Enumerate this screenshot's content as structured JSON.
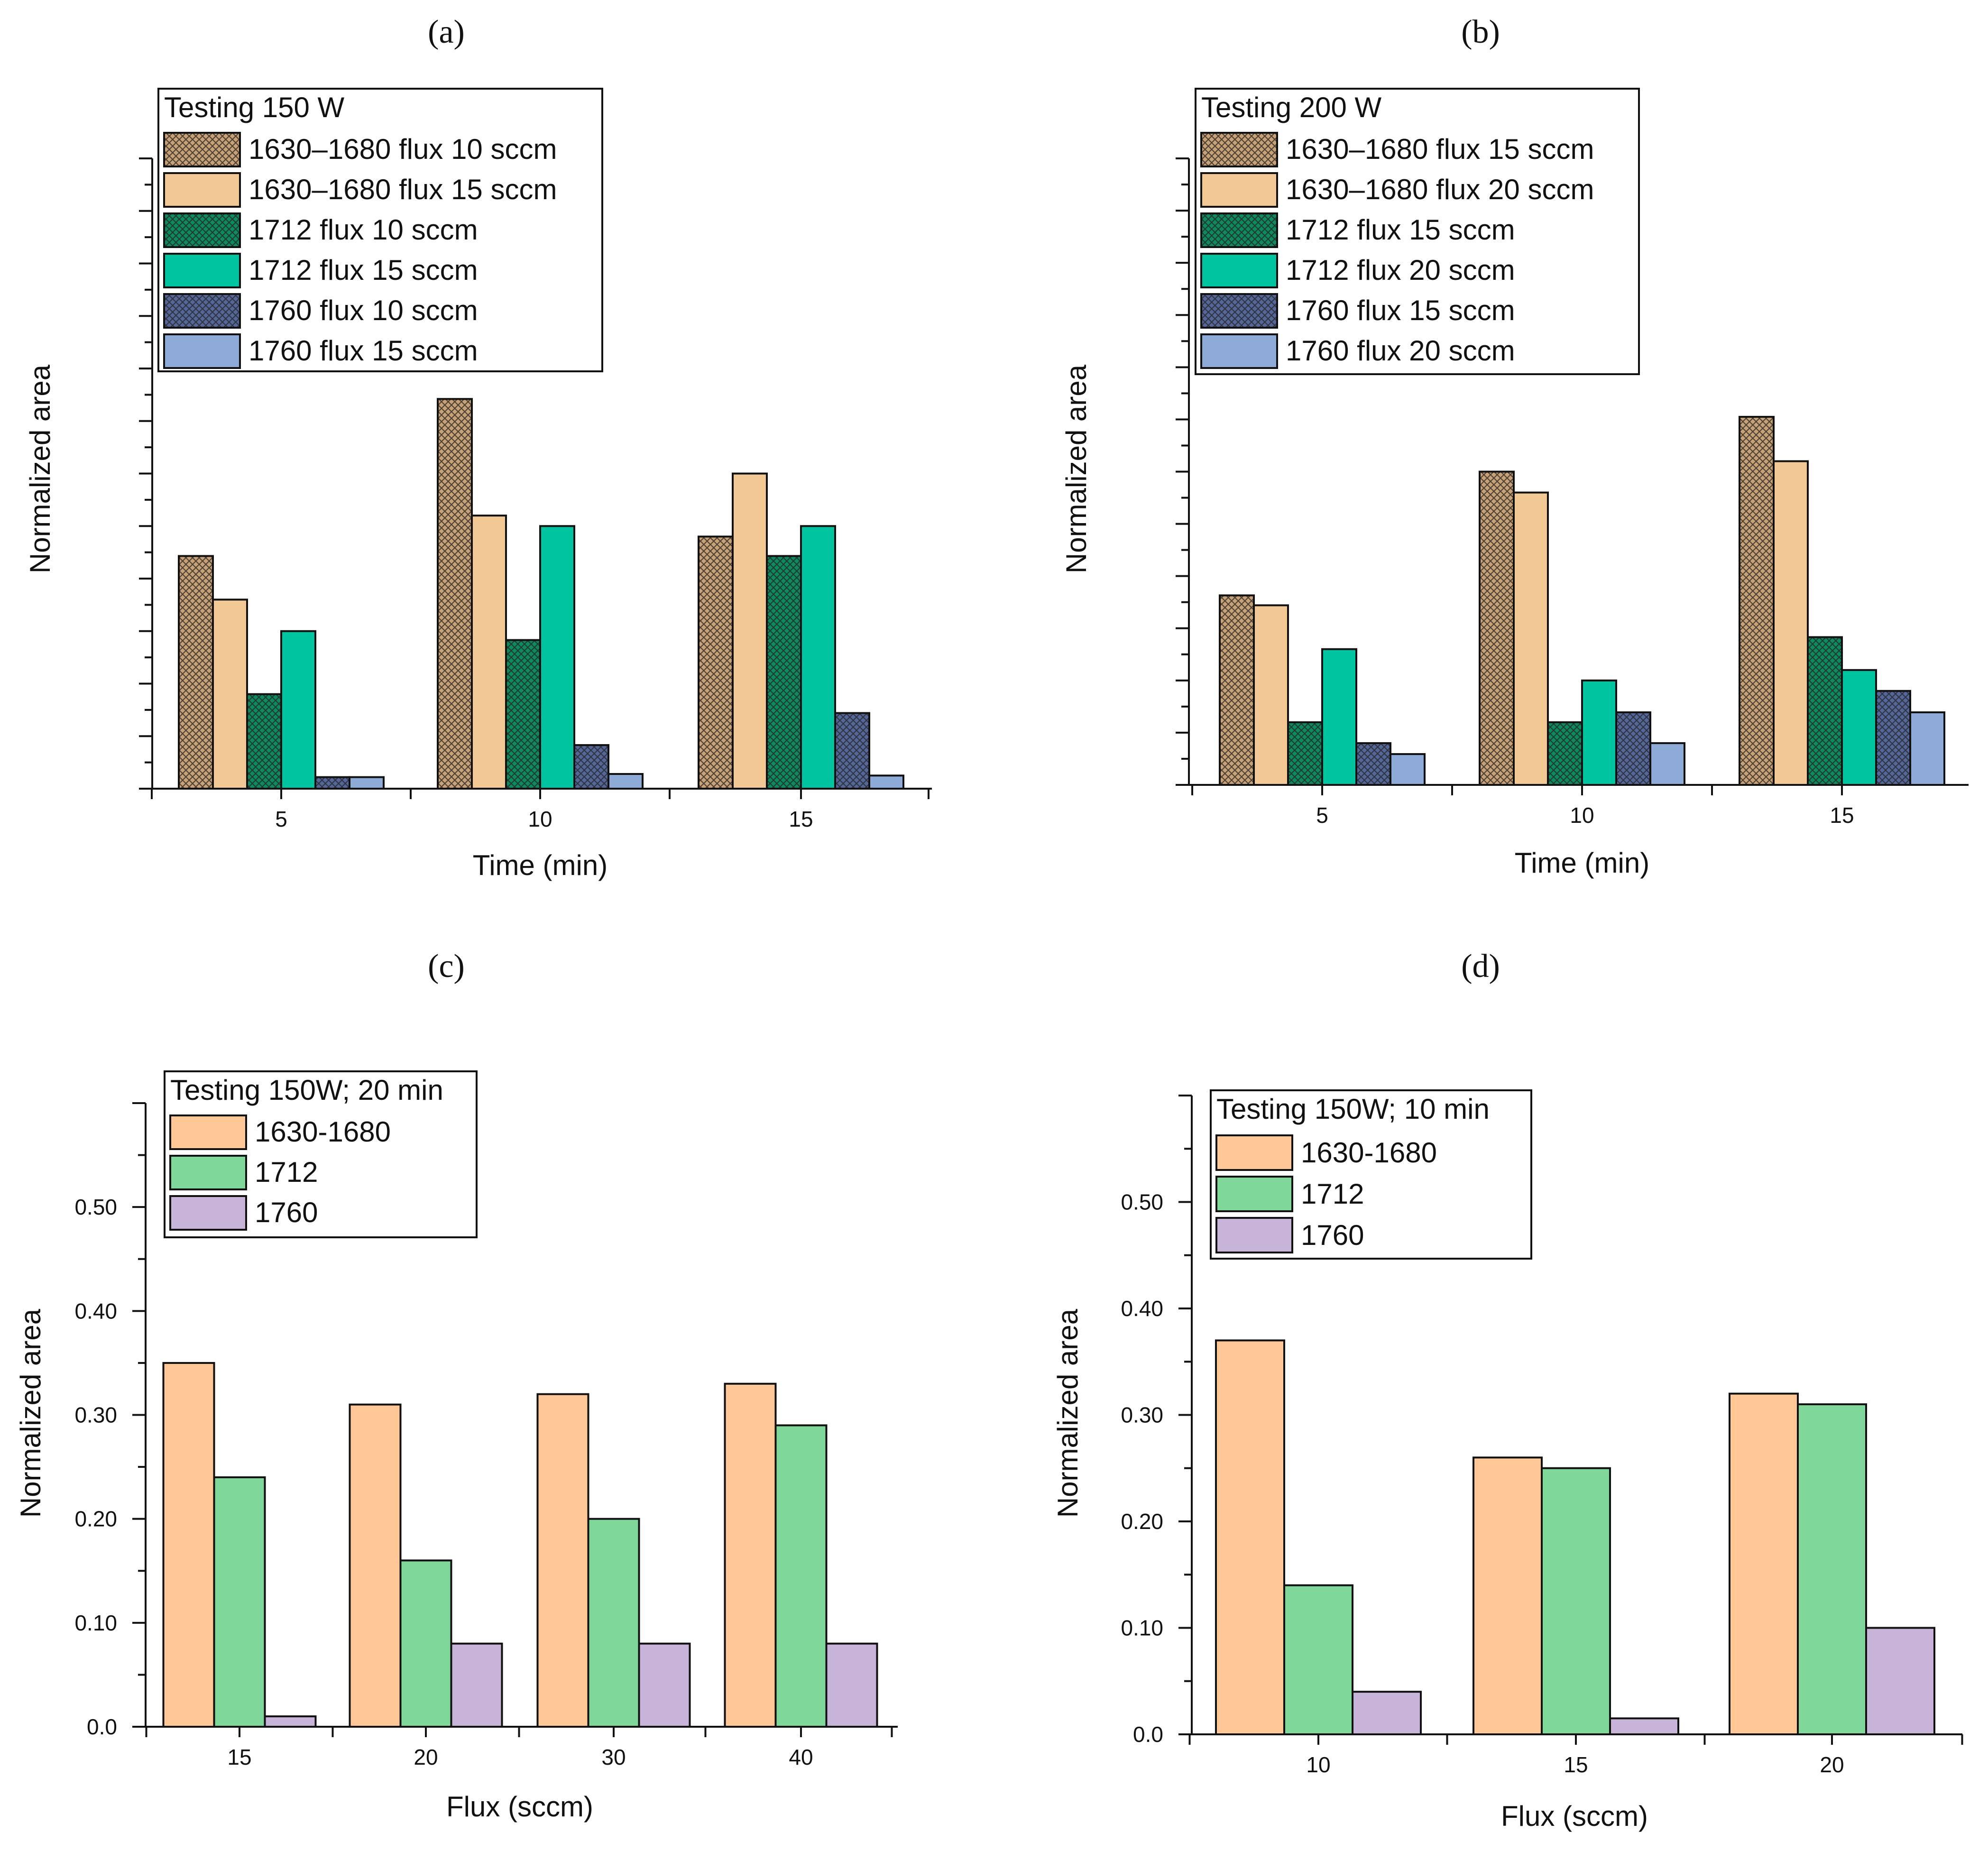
{
  "chart_data": [
    {
      "type": "bar",
      "panel": "(a)",
      "legend_title": "Testing 150 W",
      "xlabel": "Time (min)",
      "ylabel": "Normalized area",
      "categories": [
        "5",
        "10",
        "15"
      ],
      "ytick_labels": [],
      "ylim": [
        0,
        12
      ],
      "y_units": "relative (unlabeled axis, values in major-tick units)",
      "legend_placement": "top-left",
      "series": [
        {
          "name": "1630–1680 flux 10 sccm",
          "values": [
            4.43,
            7.42,
            4.8
          ],
          "color": "#c9a176",
          "hatched": true
        },
        {
          "name": "1630–1680 flux 15 sccm",
          "values": [
            3.6,
            5.2,
            6.0
          ],
          "color": "#f2c894",
          "hatched": false
        },
        {
          "name": "1712 flux 10 sccm",
          "values": [
            1.8,
            2.83,
            4.43
          ],
          "color": "#0f8a5f",
          "hatched": true
        },
        {
          "name": "1712 flux 15 sccm",
          "values": [
            3.0,
            5.0,
            5.0
          ],
          "color": "#00c4a0",
          "hatched": false
        },
        {
          "name": "1760 flux 10 sccm",
          "values": [
            0.22,
            0.83,
            1.44
          ],
          "color": "#55679a",
          "hatched": true
        },
        {
          "name": "1760 flux 15 sccm",
          "values": [
            0.22,
            0.28,
            0.25
          ],
          "color": "#8eaad6",
          "hatched": false
        }
      ]
    },
    {
      "type": "bar",
      "panel": "(b)",
      "legend_title": "Testing 200 W",
      "xlabel": "Time (min)",
      "ylabel": "Normalized area",
      "categories": [
        "5",
        "10",
        "15"
      ],
      "ytick_labels": [],
      "ylim": [
        0,
        12
      ],
      "y_units": "relative (unlabeled axis, values in major-tick units)",
      "legend_placement": "top-left",
      "series": [
        {
          "name": "1630–1680 flux 15 sccm",
          "values": [
            3.63,
            6.0,
            7.05
          ],
          "color": "#c9a176",
          "hatched": true
        },
        {
          "name": "1630–1680 flux 20 sccm",
          "values": [
            3.44,
            5.6,
            6.2
          ],
          "color": "#f2c894",
          "hatched": false
        },
        {
          "name": "1712 flux 15 sccm",
          "values": [
            1.2,
            1.2,
            2.83
          ],
          "color": "#0f8a5f",
          "hatched": true
        },
        {
          "name": "1712 flux 20 sccm",
          "values": [
            2.6,
            2.0,
            2.2
          ],
          "color": "#00c4a0",
          "hatched": false
        },
        {
          "name": "1760 flux 15 sccm",
          "values": [
            0.8,
            1.39,
            1.8
          ],
          "color": "#55679a",
          "hatched": true
        },
        {
          "name": "1760 flux 20 sccm",
          "values": [
            0.59,
            0.8,
            1.39
          ],
          "color": "#8eaad6",
          "hatched": false
        }
      ]
    },
    {
      "type": "bar",
      "panel": "(c)",
      "legend_title": "Testing 150W; 20 min",
      "xlabel": "Flux (sccm)",
      "ylabel": "Normalized area",
      "categories": [
        "15",
        "20",
        "30",
        "40"
      ],
      "ytick_labels": [
        "0.0",
        "0.10",
        "0.20",
        "0.30",
        "0.40",
        "0.50"
      ],
      "ylim": [
        0,
        0.6
      ],
      "legend_placement": "top-left",
      "series": [
        {
          "name": "1630-1680",
          "values": [
            0.35,
            0.31,
            0.32,
            0.33
          ],
          "color": "#ffc896",
          "hatched": false
        },
        {
          "name": "1712",
          "values": [
            0.24,
            0.16,
            0.2,
            0.29
          ],
          "color": "#7fd89a",
          "hatched": false
        },
        {
          "name": "1760",
          "values": [
            0.01,
            0.08,
            0.08,
            0.08
          ],
          "color": "#c8b4d8",
          "hatched": false
        }
      ]
    },
    {
      "type": "bar",
      "panel": "(d)",
      "legend_title": "Testing 150W; 10 min",
      "xlabel": "Flux (sccm)",
      "ylabel": "Normalized area",
      "categories": [
        "10",
        "15",
        "20"
      ],
      "ytick_labels": [
        "0.0",
        "0.10",
        "0.20",
        "0.30",
        "0.40",
        "0.50"
      ],
      "ylim": [
        0,
        0.6
      ],
      "legend_placement": "top-left",
      "series": [
        {
          "name": "1630-1680",
          "values": [
            0.37,
            0.26,
            0.32
          ],
          "color": "#ffc896",
          "hatched": false
        },
        {
          "name": "1712",
          "values": [
            0.14,
            0.25,
            0.31
          ],
          "color": "#7fd89a",
          "hatched": false
        },
        {
          "name": "1760",
          "values": [
            0.04,
            0.015,
            0.1
          ],
          "color": "#c8b4d8",
          "hatched": false
        }
      ]
    }
  ]
}
